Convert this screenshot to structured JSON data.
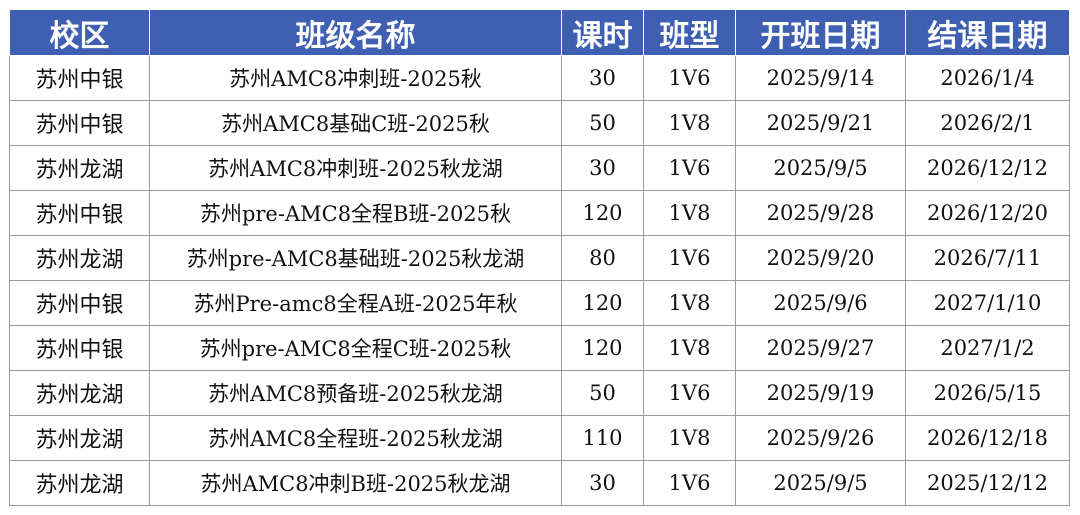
{
  "table": {
    "headers": [
      "校区",
      "班级名称",
      "课时",
      "班型",
      "开班日期",
      "结课日期"
    ],
    "rows": [
      [
        "苏州中银",
        "苏州AMC8冲刺班-2025秋",
        "30",
        "1V6",
        "2025/9/14",
        "2026/1/4"
      ],
      [
        "苏州中银",
        "苏州AMC8基础C班-2025秋",
        "50",
        "1V8",
        "2025/9/21",
        "2026/2/1"
      ],
      [
        "苏州龙湖",
        "苏州AMC8冲刺班-2025秋龙湖",
        "30",
        "1V6",
        "2025/9/5",
        "2026/12/12"
      ],
      [
        "苏州中银",
        "苏州pre-AMC8全程B班-2025秋",
        "120",
        "1V8",
        "2025/9/28",
        "2026/12/20"
      ],
      [
        "苏州龙湖",
        "苏州pre-AMC8基础班-2025秋龙湖",
        "80",
        "1V6",
        "2025/9/20",
        "2026/7/11"
      ],
      [
        "苏州中银",
        "苏州Pre-amc8全程A班-2025年秋",
        "120",
        "1V8",
        "2025/9/6",
        "2027/1/10"
      ],
      [
        "苏州中银",
        "苏州pre-AMC8全程C班-2025秋",
        "120",
        "1V8",
        "2025/9/27",
        "2027/1/2"
      ],
      [
        "苏州龙湖",
        "苏州AMC8预备班-2025秋龙湖",
        "50",
        "1V6",
        "2025/9/19",
        "2026/5/15"
      ],
      [
        "苏州龙湖",
        "苏州AMC8全程班-2025秋龙湖",
        "110",
        "1V8",
        "2025/9/26",
        "2026/12/18"
      ],
      [
        "苏州龙湖",
        "苏州AMC8冲刺B班-2025秋龙湖",
        "30",
        "1V6",
        "2025/9/5",
        "2025/12/12"
      ]
    ]
  },
  "colors": {
    "header_bg": "#3f5fb3",
    "header_text": "#ffffff",
    "grid": "#9a9a9a"
  }
}
